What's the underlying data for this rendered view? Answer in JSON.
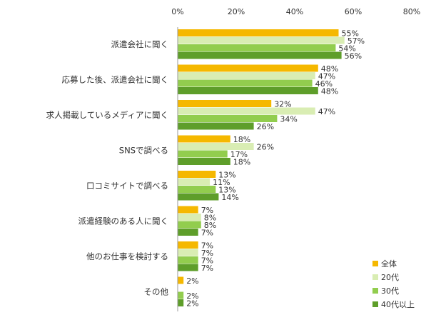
{
  "chart_data": {
    "type": "bar",
    "orientation": "horizontal",
    "categories": [
      "派遣会社に聞く",
      "応募した後、派遣会社に聞く",
      "求人掲載しているメディアに聞く",
      "SNSで調べる",
      "口コミサイトで調べる",
      "派遣経験のある人に聞く",
      "他のお仕事を検討する",
      "その他"
    ],
    "series": [
      {
        "name": "全体",
        "color": "#F5B800",
        "values": [
          55,
          48,
          32,
          18,
          13,
          7,
          7,
          2
        ],
        "labels": [
          "55%",
          "48%",
          "32%",
          "18%",
          "13%",
          "7%",
          "7%",
          "2%"
        ]
      },
      {
        "name": "20代",
        "color": "#D9EDB3",
        "values": [
          57,
          47,
          47,
          26,
          11,
          8,
          7,
          0
        ],
        "labels": [
          "57%",
          "47%",
          "47%",
          "26%",
          "11%",
          "8%",
          "7%",
          ""
        ]
      },
      {
        "name": "30代",
        "color": "#92CD4E",
        "values": [
          54,
          46,
          34,
          17,
          13,
          8,
          7,
          2
        ],
        "labels": [
          "54%",
          "46%",
          "34%",
          "17%",
          "13%",
          "8%",
          "7%",
          "2%"
        ]
      },
      {
        "name": "40代以上",
        "color": "#5E9E2A",
        "values": [
          56,
          48,
          26,
          18,
          14,
          7,
          7,
          2
        ],
        "labels": [
          "56%",
          "48%",
          "26%",
          "18%",
          "14%",
          "7%",
          "7%",
          "2%"
        ]
      }
    ],
    "xlim": [
      0,
      80
    ],
    "xticks": [
      "0%",
      "20%",
      "40%",
      "60%",
      "80%"
    ],
    "xtick_values": [
      0,
      20,
      40,
      60,
      80
    ],
    "grid": false,
    "legend_position": "bottom-right"
  }
}
